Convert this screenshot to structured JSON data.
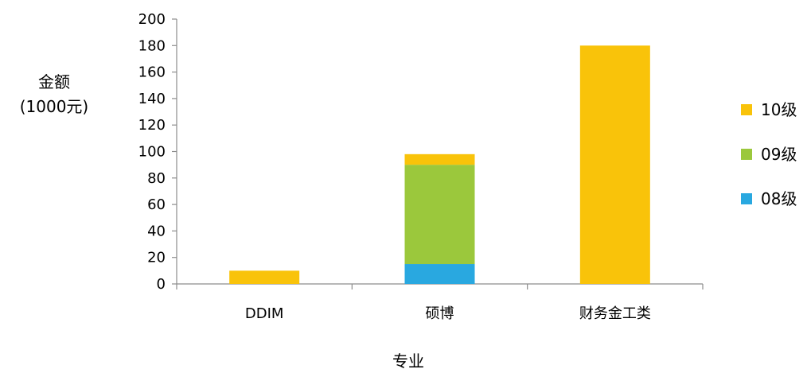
{
  "chart_data": {
    "type": "bar",
    "stacked": true,
    "title": "",
    "xlabel": "专业",
    "ylabel": "金额",
    "ylabel_unit": "(1000元)",
    "ylim": [
      0,
      200
    ],
    "yticks": [
      0,
      20,
      40,
      60,
      80,
      100,
      120,
      140,
      160,
      180,
      200
    ],
    "categories": [
      "DDIM",
      "硕博",
      "财务金工类"
    ],
    "series": [
      {
        "name": "08级",
        "color": "#29a8e0",
        "values": [
          0,
          15,
          0
        ]
      },
      {
        "name": "09级",
        "color": "#9bc83c",
        "values": [
          0,
          75,
          0
        ]
      },
      {
        "name": "10级",
        "color": "#f9c30a",
        "values": [
          10,
          8,
          180
        ]
      }
    ],
    "legend_order": [
      "10级",
      "09级",
      "08级"
    ],
    "legend_position": "right",
    "grid": false
  }
}
